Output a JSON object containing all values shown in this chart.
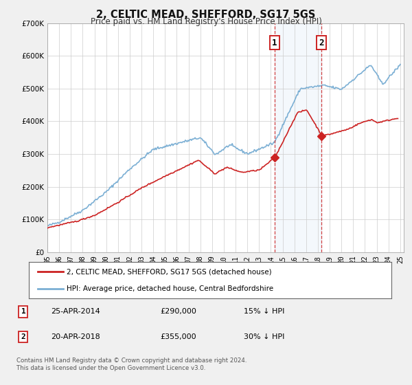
{
  "title": "2, CELTIC MEAD, SHEFFORD, SG17 5GS",
  "subtitle": "Price paid vs. HM Land Registry's House Price Index (HPI)",
  "ylim": [
    0,
    700000
  ],
  "yticks": [
    0,
    100000,
    200000,
    300000,
    400000,
    500000,
    600000,
    700000
  ],
  "ytick_labels": [
    "£0",
    "£100K",
    "£200K",
    "£300K",
    "£400K",
    "£500K",
    "£600K",
    "£700K"
  ],
  "hpi_color": "#7bafd4",
  "price_color": "#cc2222",
  "bg_color": "#f0f0f0",
  "plot_bg": "#ffffff",
  "sale1_date": 2014.32,
  "sale1_price": 290000,
  "sale1_label": "1",
  "sale2_date": 2018.3,
  "sale2_price": 355000,
  "sale2_label": "2",
  "legend_house": "2, CELTIC MEAD, SHEFFORD, SG17 5GS (detached house)",
  "legend_hpi": "HPI: Average price, detached house, Central Bedfordshire",
  "annotation1_date": "25-APR-2014",
  "annotation1_price": "£290,000",
  "annotation1_pct": "15% ↓ HPI",
  "annotation2_date": "20-APR-2018",
  "annotation2_price": "£355,000",
  "annotation2_pct": "30% ↓ HPI",
  "footnote1": "Contains HM Land Registry data © Crown copyright and database right 2024.",
  "footnote2": "This data is licensed under the Open Government Licence v3.0."
}
